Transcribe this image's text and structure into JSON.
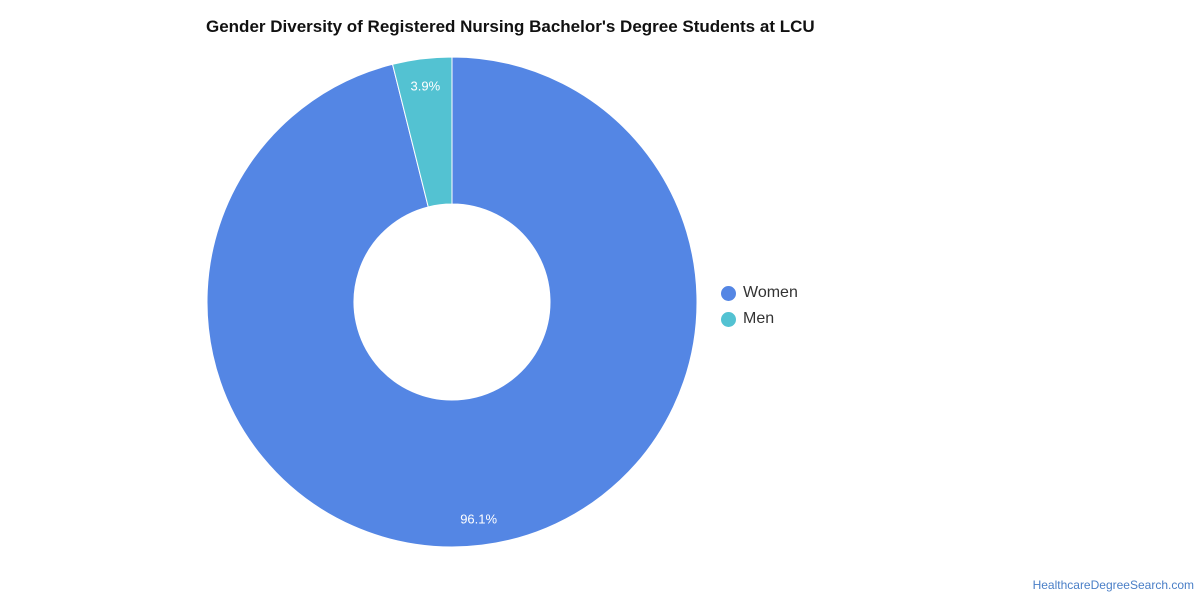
{
  "chart_data": {
    "type": "pie",
    "title": "Gender Diversity of Registered Nursing Bachelor's Degree Students at LCU",
    "donut": true,
    "legend_position": "right",
    "series": [
      {
        "name": "Women",
        "value": 96.1,
        "label": "96.1%",
        "color": "#5486e4"
      },
      {
        "name": "Men",
        "value": 3.9,
        "label": "3.9%",
        "color": "#53c2d2"
      }
    ]
  },
  "source": "HealthcareDegreeSearch.com"
}
